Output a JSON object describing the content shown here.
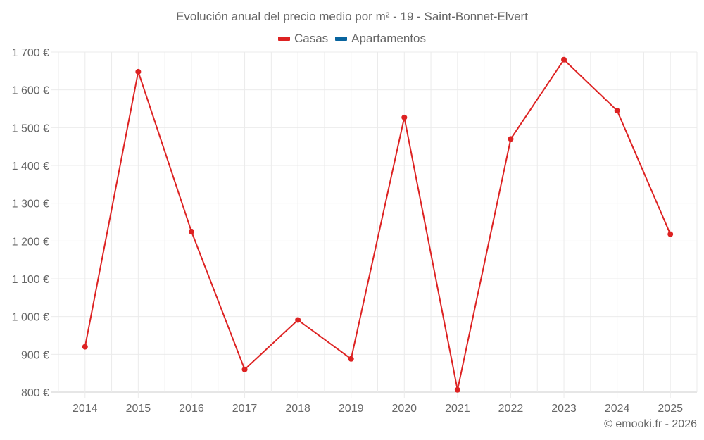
{
  "title": "Evolución anual del precio medio por m² - 19 - Saint-Bonnet-Elvert",
  "legend": [
    {
      "label": "Casas",
      "color": "#dd2222"
    },
    {
      "label": "Apartamentos",
      "color": "#08649e"
    }
  ],
  "credit": "© emooki.fr - 2026",
  "chart_data": {
    "type": "line",
    "title": "Evolución anual del precio medio por m² - 19 - Saint-Bonnet-Elvert",
    "xlabel": "",
    "ylabel": "",
    "categories": [
      "2014",
      "2015",
      "2016",
      "2017",
      "2018",
      "2019",
      "2020",
      "2021",
      "2022",
      "2023",
      "2024",
      "2025"
    ],
    "series": [
      {
        "name": "Casas",
        "color": "#dd2222",
        "values": [
          920,
          1648,
          1225,
          860,
          991,
          888,
          1527,
          806,
          1470,
          1680,
          1545,
          1218
        ]
      },
      {
        "name": "Apartamentos",
        "color": "#08649e",
        "values": []
      }
    ],
    "ylim": [
      800,
      1700
    ],
    "yticks": [
      800,
      900,
      1000,
      1100,
      1200,
      1300,
      1400,
      1500,
      1600,
      1700
    ],
    "ytick_labels": [
      "800 €",
      "900 €",
      "1 000 €",
      "1 100 €",
      "1 200 €",
      "1 300 €",
      "1 400 €",
      "1 500 €",
      "1 600 €",
      "1 700 €"
    ],
    "grid": true,
    "legend_position": "top"
  }
}
